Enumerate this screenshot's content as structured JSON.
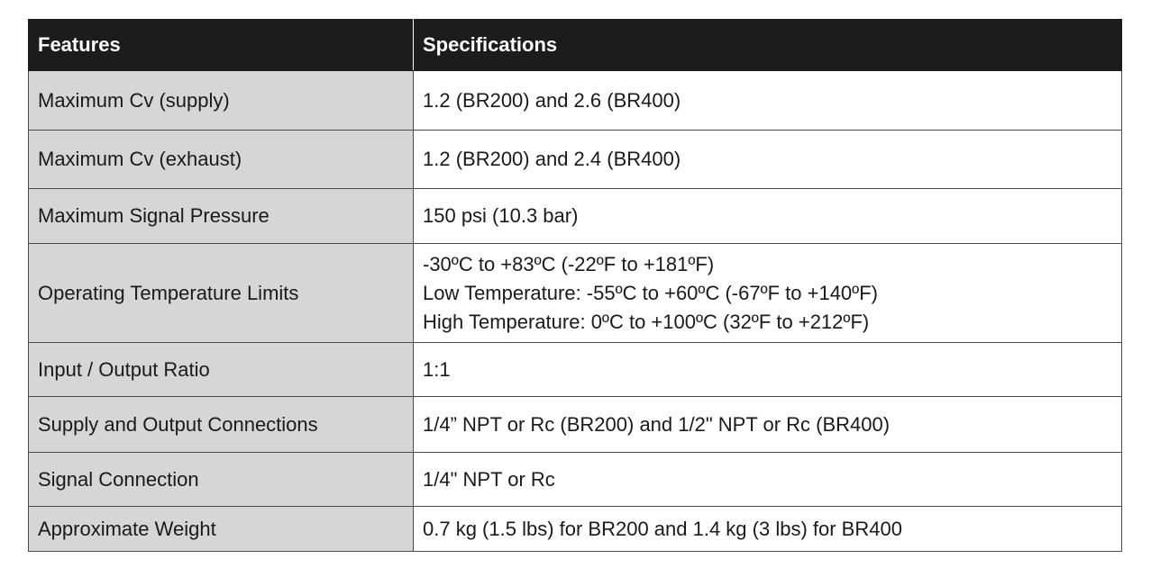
{
  "table": {
    "header": [
      "Features",
      "Specifications"
    ],
    "rows": [
      [
        "Maximum Cv (supply)",
        "1.2 (BR200) and 2.6 (BR400)"
      ],
      [
        "Maximum Cv (exhaust)",
        "1.2 (BR200) and 2.4 (BR400)"
      ],
      [
        "Maximum Signal Pressure",
        "150 psi (10.3 bar)"
      ],
      [
        "Operating Temperature Limits",
        [
          "-30ºC to +83ºC (-22ºF to +181ºF)",
          "Low Temperature: -55ºC to +60ºC (-67ºF to +140ºF)",
          "High Temperature: 0ºC to +100ºC (32ºF to +212ºF)"
        ]
      ],
      [
        "Input / Output Ratio",
        "1:1"
      ],
      [
        "Supply and Output Connections",
        "1/4” NPT or Rc (BR200) and 1/2\" NPT or Rc (BR400)"
      ],
      [
        "Signal Connection",
        "1/4\" NPT or Rc"
      ],
      [
        "Approximate Weight",
        "0.7 kg (1.5 lbs) for BR200 and 1.4 kg (3 lbs) for BR400"
      ]
    ]
  }
}
